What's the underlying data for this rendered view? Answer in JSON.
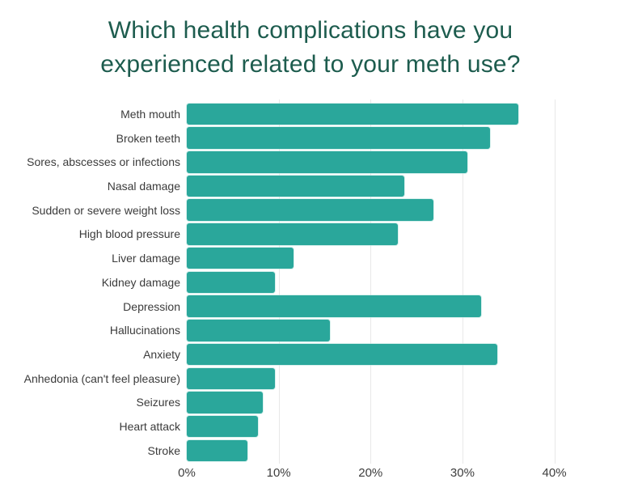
{
  "title": {
    "line1": "Which health complications have you",
    "line2": "experienced related to your meth use?"
  },
  "colors": {
    "background": "#ffffff",
    "bar": "#2aa79b",
    "title": "#1d5c4e",
    "label": "#3b3b3b",
    "tick": "#3d3d3d",
    "gridline": "#e8e8e8"
  },
  "chart_data": {
    "type": "bar",
    "orientation": "horizontal",
    "title": "Which health complications have you experienced related to your meth use?",
    "categories": [
      "Meth mouth",
      "Broken teeth",
      "Sores, abscesses or infections",
      "Nasal damage",
      "Sudden or severe weight loss",
      "High blood pressure",
      "Liver damage",
      "Kidney damage",
      "Depression",
      "Hallucinations",
      "Anxiety",
      "Anhedonia (can't feel pleasure)",
      "Seizures",
      "Heart attack",
      "Stroke"
    ],
    "values": [
      36.1,
      33.0,
      30.5,
      23.7,
      26.8,
      23.0,
      11.6,
      9.6,
      32.0,
      15.6,
      33.8,
      9.6,
      8.3,
      7.7,
      6.6
    ],
    "value_unit": "%",
    "xlabel": "",
    "ylabel": "",
    "xlim": [
      0,
      44
    ],
    "x_ticks": [
      {
        "label": "0%",
        "value": 0
      },
      {
        "label": "10%",
        "value": 10
      },
      {
        "label": "20%",
        "value": 20
      },
      {
        "label": "30%",
        "value": 30
      },
      {
        "label": "40%",
        "value": 40
      }
    ],
    "grid": "vertical",
    "legend": "none"
  }
}
